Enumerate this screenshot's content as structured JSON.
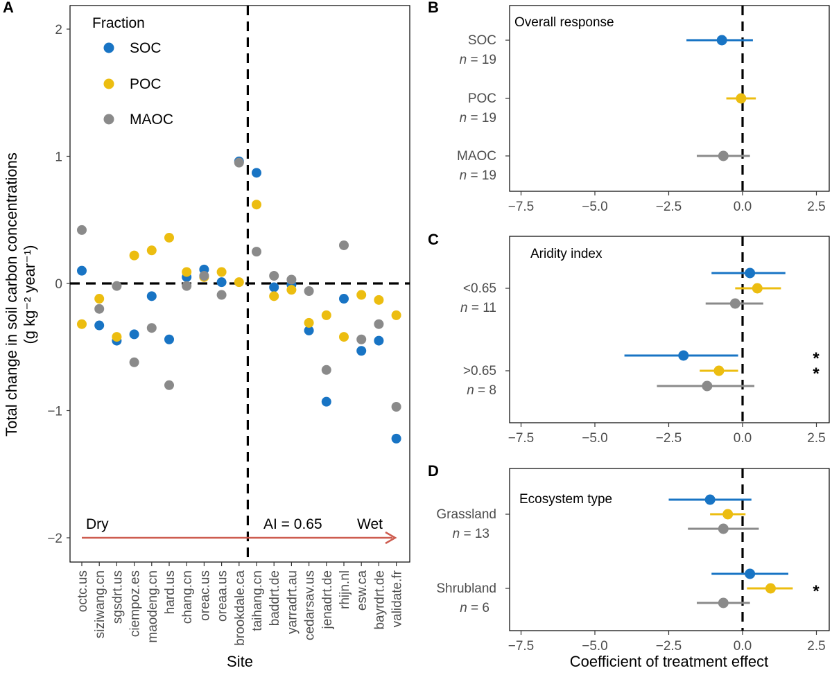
{
  "colors": {
    "SOC": "#1874c4",
    "POC": "#ecbd10",
    "MAOC": "#8a8a8a",
    "arrow": "#cd5c4f"
  },
  "chart_data": [
    {
      "panel": "A",
      "type": "scatter",
      "xlabel": "Site",
      "ylabel_line1": "Total change in soil carbon concentrations",
      "ylabel_line2": "(g kg⁻² year⁻¹)",
      "ylim": [
        -2.2,
        2.2
      ],
      "yticks": [
        -2,
        -1,
        0,
        1,
        2
      ],
      "ytick_labels": [
        "−2",
        "−1",
        "0",
        "1",
        "2"
      ],
      "legend": {
        "title": "Fraction",
        "entries": [
          "SOC",
          "POC",
          "MAOC"
        ]
      },
      "categories": [
        "octc.us",
        "siziwang.cn",
        "sgsdrt.us",
        "ciempoz.es",
        "maodeng.cn",
        "hard.us",
        "chang.cn",
        "oreac.us",
        "oreaa.us",
        "brookdale.ca",
        "taihang.cn",
        "baddrt.de",
        "yarradrt.au",
        "cedarsav.us",
        "jenadrt.de",
        "rhijn.nl",
        "esw.ca",
        "bayrdrt.de",
        "validate.fr"
      ],
      "series": [
        {
          "name": "SOC",
          "values": [
            0.1,
            -0.33,
            -0.45,
            -0.4,
            -0.1,
            -0.44,
            0.05,
            0.11,
            0.01,
            0.96,
            0.87,
            -0.03,
            -0.01,
            -0.37,
            -0.93,
            -0.12,
            -0.53,
            -0.45,
            -1.22
          ]
        },
        {
          "name": "POC",
          "values": [
            -0.32,
            -0.12,
            -0.42,
            0.22,
            0.26,
            0.36,
            0.09,
            0.05,
            0.09,
            0.01,
            0.62,
            -0.1,
            -0.05,
            -0.31,
            -0.25,
            -0.42,
            -0.09,
            -0.13,
            -0.25
          ]
        },
        {
          "name": "MAOC",
          "values": [
            0.42,
            -0.2,
            -0.02,
            -0.62,
            -0.35,
            -0.8,
            -0.02,
            0.06,
            -0.09,
            0.95,
            0.25,
            0.06,
            0.03,
            -0.06,
            -0.68,
            0.3,
            -0.44,
            -0.32,
            -0.97
          ]
        }
      ],
      "vline_after": "brookdale.ca",
      "hline": 0,
      "annotations": {
        "dry": "Dry",
        "wet": "Wet",
        "ai": "AI = 0.65"
      }
    },
    {
      "panel": "B",
      "type": "forest",
      "subtitle": "Overall response",
      "xlim": [
        -8.5,
        3
      ],
      "xticks": [
        -7.5,
        -5.0,
        -2.5,
        0.0,
        2.5
      ],
      "xtick_labels": [
        "−7.5",
        "−5.0",
        "−2.5",
        "0.0",
        "2.5"
      ],
      "groups": [
        {
          "label": "SOC",
          "n": "= 19",
          "points": [
            {
              "fraction": "SOC",
              "est": -0.7,
              "lo": -1.9,
              "hi": 0.35,
              "sig": false
            }
          ]
        },
        {
          "label": "POC",
          "n": "= 19",
          "points": [
            {
              "fraction": "POC",
              "est": -0.05,
              "lo": -0.55,
              "hi": 0.45,
              "sig": false
            }
          ]
        },
        {
          "label": "MAOC",
          "n": "= 19",
          "points": [
            {
              "fraction": "MAOC",
              "est": -0.65,
              "lo": -1.55,
              "hi": 0.25,
              "sig": false
            }
          ]
        }
      ]
    },
    {
      "panel": "C",
      "type": "forest",
      "subtitle": "Aridity index",
      "xlim": [
        -8.5,
        3
      ],
      "xticks": [
        -7.5,
        -5.0,
        -2.5,
        0.0,
        2.5
      ],
      "xtick_labels": [
        "−7.5",
        "−5.0",
        "−2.5",
        "0.0",
        "2.5"
      ],
      "groups": [
        {
          "label": "<0.65",
          "n": "= 11",
          "points": [
            {
              "fraction": "SOC",
              "est": 0.25,
              "lo": -1.05,
              "hi": 1.45,
              "sig": false
            },
            {
              "fraction": "POC",
              "est": 0.5,
              "lo": -0.25,
              "hi": 1.3,
              "sig": false
            },
            {
              "fraction": "MAOC",
              "est": -0.25,
              "lo": -1.25,
              "hi": 0.7,
              "sig": false
            }
          ]
        },
        {
          "label": ">0.65",
          "n": "= 8",
          "points": [
            {
              "fraction": "SOC",
              "est": -2.0,
              "lo": -4.0,
              "hi": -0.15,
              "sig": true
            },
            {
              "fraction": "POC",
              "est": -0.8,
              "lo": -1.45,
              "hi": -0.15,
              "sig": true
            },
            {
              "fraction": "MAOC",
              "est": -1.2,
              "lo": -2.9,
              "hi": 0.4,
              "sig": false
            }
          ]
        }
      ]
    },
    {
      "panel": "D",
      "type": "forest",
      "subtitle": "Ecosystem type",
      "xlabel": "Coefficient of treatment effect",
      "xlim": [
        -8.5,
        3
      ],
      "xticks": [
        -7.5,
        -5.0,
        -2.5,
        0.0,
        2.5
      ],
      "xtick_labels": [
        "−7.5",
        "−5.0",
        "−2.5",
        "0.0",
        "2.5"
      ],
      "groups": [
        {
          "label": "Grassland",
          "n": "= 13",
          "points": [
            {
              "fraction": "SOC",
              "est": -1.1,
              "lo": -2.5,
              "hi": 0.3,
              "sig": false
            },
            {
              "fraction": "POC",
              "est": -0.5,
              "lo": -1.1,
              "hi": 0.1,
              "sig": false
            },
            {
              "fraction": "MAOC",
              "est": -0.65,
              "lo": -1.85,
              "hi": 0.55,
              "sig": false
            }
          ]
        },
        {
          "label": "Shrubland",
          "n": "= 6",
          "points": [
            {
              "fraction": "SOC",
              "est": 0.25,
              "lo": -1.05,
              "hi": 1.55,
              "sig": false
            },
            {
              "fraction": "POC",
              "est": 0.95,
              "lo": 0.15,
              "hi": 1.7,
              "sig": true
            },
            {
              "fraction": "MAOC",
              "est": -0.65,
              "lo": -1.55,
              "hi": 0.25,
              "sig": false
            }
          ]
        }
      ]
    }
  ]
}
